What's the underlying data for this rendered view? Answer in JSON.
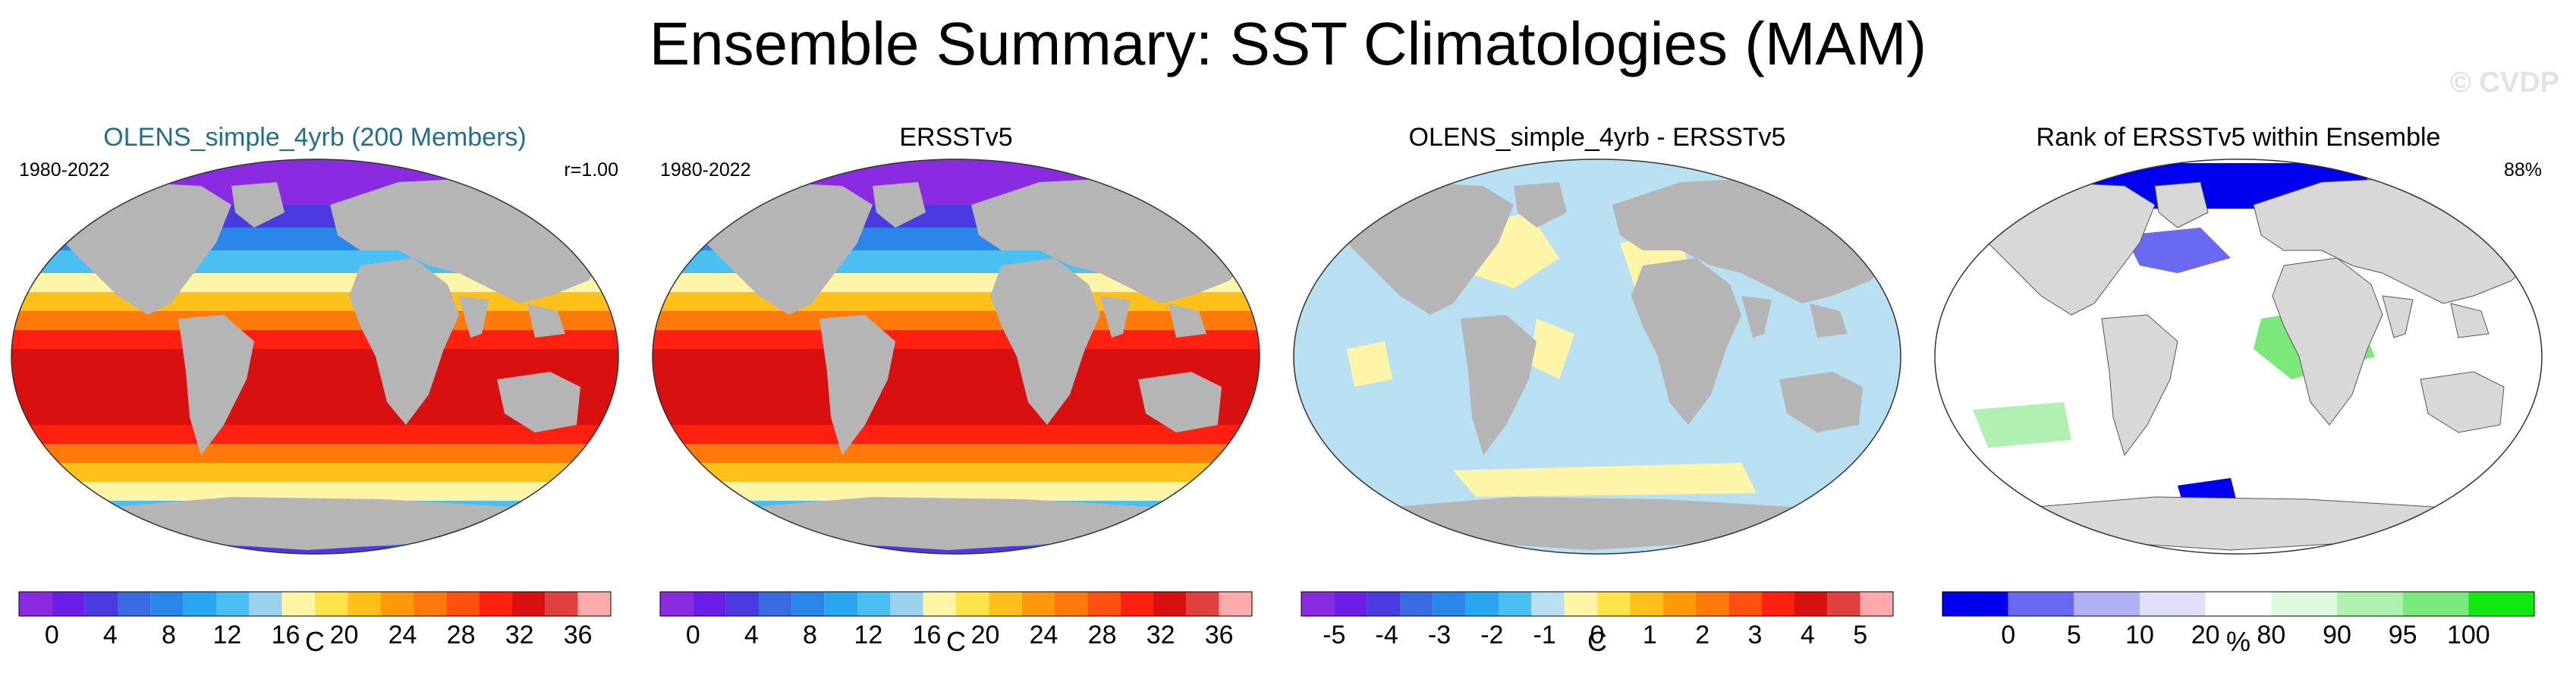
{
  "title": "Ensemble Summary: SST Climatologies (MAM)",
  "watermark": "© CVDP",
  "colors": {
    "ocean_text": "#1f6f8f",
    "land": "#b5b5b5",
    "sst_scale": [
      "#8a2be2",
      "#6a1ee8",
      "#4a3ae0",
      "#3a6ae0",
      "#2a86e8",
      "#2aa6f0",
      "#4ac0f2",
      "#9ad0ec",
      "#fff5a8",
      "#ffe34a",
      "#ffc01a",
      "#ff9a0a",
      "#ff7a0a",
      "#ff5010",
      "#ff2010",
      "#d81010",
      "#e04040",
      "#ffaaaa"
    ],
    "diff_scale": [
      "#8a2be2",
      "#6a1ee8",
      "#4a3ae0",
      "#3a6ae0",
      "#2a86e8",
      "#2aa6f0",
      "#4ac0f2",
      "#b8dff2",
      "#fff5a8",
      "#ffe34a",
      "#ffc01a",
      "#ff9a0a",
      "#ff7a0a",
      "#ff5010",
      "#ff2010",
      "#d81010",
      "#e04040",
      "#ffaaaa"
    ],
    "rank_scale": [
      "#0000ee",
      "#6a6af0",
      "#b0b0f5",
      "#e0e0fa",
      "#ffffff",
      "#e0fae0",
      "#b0f0b0",
      "#7ae87a",
      "#11e811"
    ]
  },
  "panels": [
    {
      "title": "OLENS_simple_4yrb (200 Members)",
      "left_label": "1980-2022",
      "right_label": "r=1.00",
      "field": "sst",
      "colorbar": {
        "ticks": [
          "0",
          "4",
          "8",
          "12",
          "16",
          "20",
          "24",
          "28",
          "32",
          "36"
        ],
        "label": "C"
      }
    },
    {
      "title": "ERSSTv5",
      "left_label": "1980-2022",
      "right_label": "",
      "field": "sst",
      "colorbar": {
        "ticks": [
          "0",
          "4",
          "8",
          "12",
          "16",
          "20",
          "24",
          "28",
          "32",
          "36"
        ],
        "label": "C"
      }
    },
    {
      "title": "OLENS_simple_4yrb - ERSSTv5",
      "left_label": "",
      "right_label": "",
      "field": "diff",
      "colorbar": {
        "ticks": [
          "-5",
          "-4",
          "-3",
          "-2",
          "-1",
          "0",
          "1",
          "2",
          "3",
          "4",
          "5"
        ],
        "label": "C"
      }
    },
    {
      "title": "Rank of ERSSTv5 within Ensemble",
      "left_label": "",
      "right_label": "88%",
      "field": "rank",
      "colorbar": {
        "ticks": [
          "0",
          "5",
          "10",
          "20",
          "80",
          "90",
          "95",
          "100"
        ],
        "label": "%"
      }
    }
  ],
  "chart_data": [
    {
      "type": "heatmap",
      "title": "OLENS_simple_4yrb (200 Members)",
      "period": "1980-2022",
      "pattern_correlation": 1.0,
      "units": "C",
      "colorbar_range": [
        0,
        36
      ],
      "colorbar_ticks": [
        0,
        4,
        8,
        12,
        16,
        20,
        24,
        28,
        32,
        36
      ]
    },
    {
      "type": "heatmap",
      "title": "ERSSTv5",
      "period": "1980-2022",
      "units": "C",
      "colorbar_range": [
        0,
        36
      ],
      "colorbar_ticks": [
        0,
        4,
        8,
        12,
        16,
        20,
        24,
        28,
        32,
        36
      ]
    },
    {
      "type": "heatmap",
      "title": "OLENS_simple_4yrb - ERSSTv5",
      "units": "C",
      "colorbar_range": [
        -5,
        5
      ],
      "colorbar_ticks": [
        -5,
        -4,
        -3,
        -2,
        -1,
        0,
        1,
        2,
        3,
        4,
        5
      ]
    },
    {
      "type": "heatmap",
      "title": "Rank of ERSSTv5 within Ensemble",
      "units": "%",
      "percent_within_range": 88,
      "colorbar_ticks": [
        0,
        5,
        10,
        20,
        80,
        90,
        95,
        100
      ]
    }
  ]
}
